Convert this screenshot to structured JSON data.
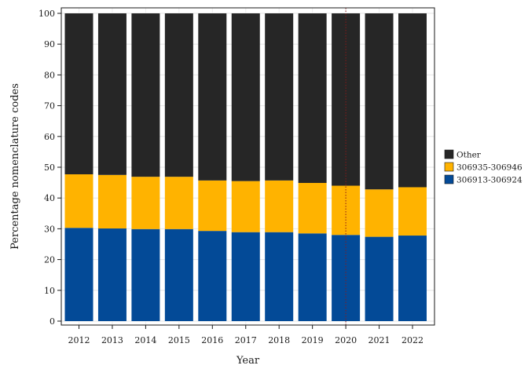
{
  "chart_data": {
    "type": "bar",
    "stacked": true,
    "categories": [
      "2012",
      "2013",
      "2014",
      "2015",
      "2016",
      "2017",
      "2018",
      "2019",
      "2020",
      "2021",
      "2022"
    ],
    "series": [
      {
        "name": "306913-306924",
        "color": "#034a97",
        "values": [
          30.3,
          30.1,
          29.9,
          29.9,
          29.3,
          28.9,
          28.9,
          28.5,
          28.0,
          27.4,
          27.8
        ]
      },
      {
        "name": "306935-306946",
        "color": "#ffb300",
        "values": [
          17.4,
          17.4,
          17.0,
          17.0,
          16.4,
          16.6,
          16.8,
          16.4,
          16.0,
          15.4,
          15.7
        ]
      },
      {
        "name": "Other",
        "color": "#262626",
        "values": [
          52.3,
          52.5,
          53.1,
          53.1,
          54.3,
          54.5,
          54.3,
          55.1,
          56.0,
          57.2,
          56.5
        ]
      }
    ],
    "xlabel": "Year",
    "ylabel": "Percentage nomenclature codes",
    "ylim": [
      0,
      100
    ],
    "yticks": [
      0,
      10,
      20,
      30,
      40,
      50,
      60,
      70,
      80,
      90,
      100
    ],
    "grid": true,
    "legend_position": "right",
    "legend_order": [
      "Other",
      "306935-306946",
      "306913-306924"
    ],
    "reference_line": {
      "x": "2020",
      "style": "dotted",
      "color": "#8b1a1a"
    }
  }
}
